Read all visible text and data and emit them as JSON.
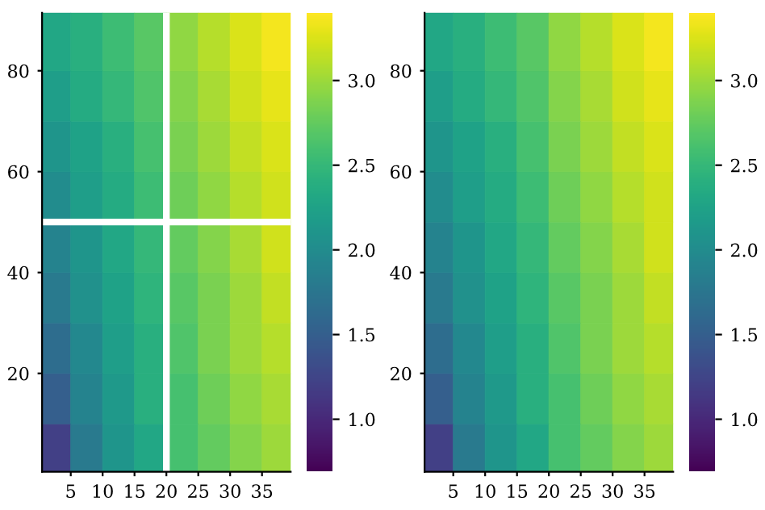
{
  "chart_data": [
    {
      "type": "heatmap",
      "x": [
        2.5,
        7.5,
        12.5,
        17.5,
        22.5,
        27.5,
        32.5,
        37.5
      ],
      "y": [
        85,
        75,
        65,
        55,
        45,
        35,
        25,
        15,
        5
      ],
      "cells": [
        [
          2.3,
          2.4,
          2.55,
          2.7,
          2.95,
          3.1,
          3.25,
          3.35
        ],
        [
          2.2,
          2.35,
          2.5,
          2.65,
          2.9,
          3.05,
          3.2,
          3.3
        ],
        [
          2.1,
          2.25,
          2.4,
          2.6,
          2.85,
          3.0,
          3.15,
          3.25
        ],
        [
          2.0,
          2.2,
          2.35,
          2.55,
          2.8,
          2.95,
          3.1,
          3.2
        ],
        [
          1.9,
          2.1,
          2.3,
          2.5,
          2.75,
          2.9,
          3.05,
          3.2
        ],
        [
          1.8,
          2.05,
          2.25,
          2.45,
          2.7,
          2.85,
          3.0,
          3.15
        ],
        [
          1.65,
          1.95,
          2.2,
          2.4,
          2.65,
          2.85,
          3.0,
          3.1
        ],
        [
          1.5,
          1.9,
          2.15,
          2.4,
          2.6,
          2.8,
          2.95,
          3.05
        ],
        [
          1.2,
          1.8,
          2.1,
          2.3,
          2.6,
          2.75,
          2.9,
          3.0
        ]
      ],
      "xlim": [
        0.5,
        39.5
      ],
      "ylim": [
        0.5,
        91.5
      ],
      "xticks": [
        5,
        10,
        15,
        20,
        25,
        30,
        35
      ],
      "yticks": [
        20,
        40,
        60,
        80
      ],
      "clim": [
        0.69,
        3.4
      ],
      "cticks": [
        {
          "value": 1.0,
          "label": "1.0"
        },
        {
          "value": 1.5,
          "label": "1.5"
        },
        {
          "value": 2.0,
          "label": "2.0"
        },
        {
          "value": 2.5,
          "label": "2.5"
        },
        {
          "value": 3.0,
          "label": "3.0"
        }
      ],
      "ref_lines": [
        {
          "axis": "x",
          "value": 20,
          "color": "#ffffff"
        },
        {
          "axis": "y",
          "value": 50,
          "color": "#ffffff"
        }
      ],
      "grid": false
    },
    {
      "type": "heatmap",
      "x": [
        2.5,
        7.5,
        12.5,
        17.5,
        22.5,
        27.5,
        32.5,
        37.5
      ],
      "y": [
        85,
        75,
        65,
        55,
        45,
        35,
        25,
        15,
        5
      ],
      "cells": [
        [
          2.3,
          2.4,
          2.55,
          2.7,
          2.95,
          3.1,
          3.25,
          3.35
        ],
        [
          2.2,
          2.35,
          2.5,
          2.65,
          2.9,
          3.05,
          3.2,
          3.3
        ],
        [
          2.1,
          2.25,
          2.4,
          2.6,
          2.85,
          3.0,
          3.15,
          3.25
        ],
        [
          2.0,
          2.2,
          2.35,
          2.55,
          2.8,
          2.95,
          3.1,
          3.2
        ],
        [
          1.9,
          2.1,
          2.3,
          2.5,
          2.75,
          2.9,
          3.05,
          3.2
        ],
        [
          1.8,
          2.05,
          2.25,
          2.45,
          2.7,
          2.85,
          3.0,
          3.15
        ],
        [
          1.65,
          1.95,
          2.2,
          2.4,
          2.65,
          2.85,
          3.0,
          3.1
        ],
        [
          1.5,
          1.9,
          2.15,
          2.4,
          2.6,
          2.8,
          2.95,
          3.05
        ],
        [
          1.2,
          1.8,
          2.1,
          2.3,
          2.6,
          2.75,
          2.9,
          3.0
        ]
      ],
      "xlim": [
        0.5,
        39.5
      ],
      "ylim": [
        0.5,
        91.5
      ],
      "xticks": [
        5,
        10,
        15,
        20,
        25,
        30,
        35
      ],
      "yticks": [
        20,
        40,
        60,
        80
      ],
      "clim": [
        0.69,
        3.4
      ],
      "cticks": [
        {
          "value": 1.0,
          "label": "1.0"
        },
        {
          "value": 1.5,
          "label": "1.5"
        },
        {
          "value": 2.0,
          "label": "2.0"
        },
        {
          "value": 2.5,
          "label": "2.5"
        },
        {
          "value": 3.0,
          "label": "3.0"
        }
      ],
      "grid": false
    }
  ]
}
